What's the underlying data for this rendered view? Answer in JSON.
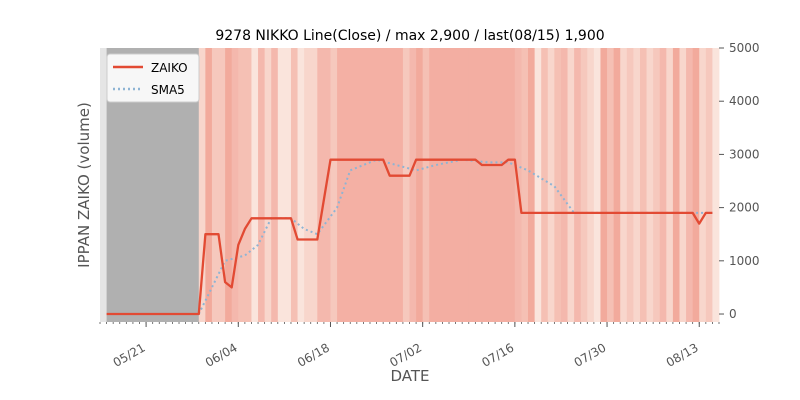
{
  "chart_data": {
    "type": "line",
    "title": "9278 NIKKO Line(Close) / max 2,900 / last(08/15) 1,900",
    "xlabel": "DATE",
    "ylabel": "IPPAN ZAIKO (volume)",
    "y_axis_side": "right",
    "ylim": [
      -150,
      5000
    ],
    "yticks": [
      0,
      1000,
      2000,
      3000,
      4000,
      5000
    ],
    "yticklabels": [
      "0",
      "1000",
      "2000",
      "3000",
      "4000",
      "5000"
    ],
    "xlim": [
      "2023-05-14",
      "2023-08-16"
    ],
    "xticks": [
      "2023-05-21",
      "2023-06-04",
      "2023-06-18",
      "2023-07-02",
      "2023-07-16",
      "2023-07-30",
      "2023-08-13"
    ],
    "xticklabels": [
      "05/21",
      "06/04",
      "06/18",
      "07/02",
      "07/16",
      "07/30",
      "08/13"
    ],
    "grid": false,
    "legend": {
      "placement": "top-left",
      "entries": [
        "ZAIKO",
        "SMA5"
      ]
    },
    "background_shading": "per-day vertical bands in shades of red/pink; gray where no data",
    "gray_bands": [
      [
        "2023-05-15",
        "2023-05-29"
      ]
    ],
    "series": [
      {
        "name": "ZAIKO",
        "color": "#e24a33",
        "style": "solid",
        "x": [
          "2023-05-15",
          "2023-05-29",
          "2023-05-30",
          "2023-06-01",
          "2023-06-02",
          "2023-06-03",
          "2023-06-04",
          "2023-06-05",
          "2023-06-06",
          "2023-06-07",
          "2023-06-08",
          "2023-06-12",
          "2023-06-13",
          "2023-06-16",
          "2023-06-18",
          "2023-06-26",
          "2023-06-27",
          "2023-06-30",
          "2023-07-01",
          "2023-07-10",
          "2023-07-11",
          "2023-07-14",
          "2023-07-15",
          "2023-07-16",
          "2023-07-17",
          "2023-08-12",
          "2023-08-13",
          "2023-08-14",
          "2023-08-15"
        ],
        "y": [
          0,
          0,
          1500,
          1500,
          600,
          500,
          1300,
          1600,
          1800,
          1800,
          1800,
          1800,
          1400,
          1400,
          2900,
          2900,
          2600,
          2600,
          2900,
          2900,
          2800,
          2800,
          2900,
          2900,
          1900,
          1900,
          1700,
          1900,
          1900
        ]
      },
      {
        "name": "SMA5",
        "color": "#8eb4d4",
        "style": "dotted",
        "x": [
          "2023-05-29",
          "2023-06-02",
          "2023-06-05",
          "2023-06-07",
          "2023-06-09",
          "2023-06-12",
          "2023-06-14",
          "2023-06-16",
          "2023-06-19",
          "2023-06-21",
          "2023-06-25",
          "2023-06-28",
          "2023-07-01",
          "2023-07-04",
          "2023-07-08",
          "2023-07-12",
          "2023-07-15",
          "2023-07-18",
          "2023-07-22",
          "2023-07-25",
          "2023-08-12",
          "2023-08-15"
        ],
        "y": [
          0,
          1000,
          1100,
          1300,
          1800,
          1800,
          1600,
          1500,
          2000,
          2700,
          2900,
          2800,
          2700,
          2800,
          2900,
          2850,
          2850,
          2700,
          2400,
          1900,
          1900,
          1900
        ]
      }
    ]
  }
}
